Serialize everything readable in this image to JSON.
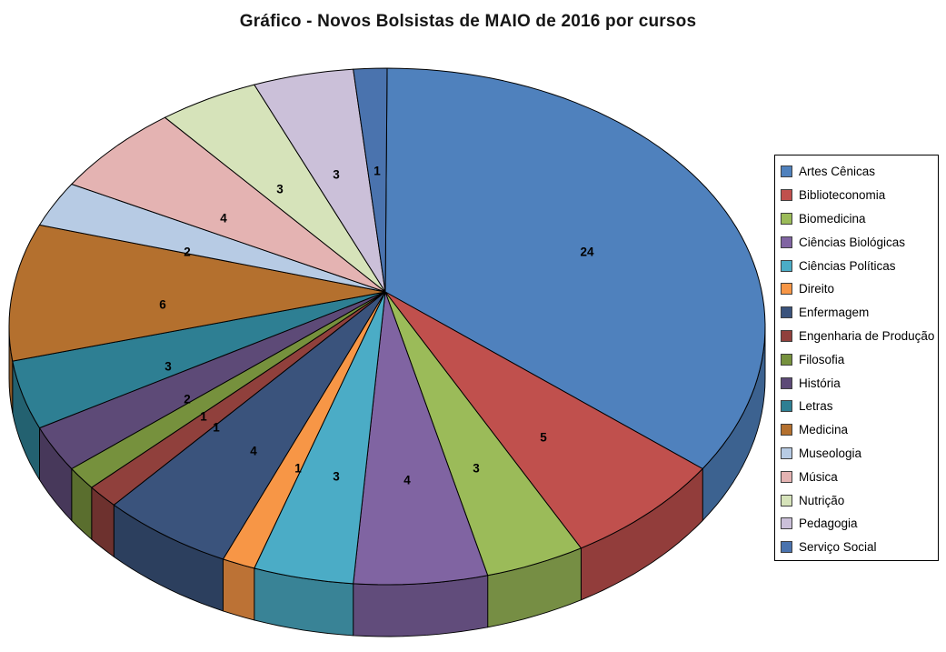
{
  "title": "Gráfico - Novos Bolsistas de MAIO de 2016 por cursos",
  "chart_data": {
    "type": "pie",
    "style": "3d",
    "title": "Gráfico - Novos Bolsistas de MAIO de 2016 por cursos",
    "direction": "clockwise",
    "start_angle_deg": 0,
    "legend_position": "right",
    "data_labels": "values",
    "total": 70,
    "categories": [
      "Artes Cênicas",
      "Biblioteconomia",
      "Biomedicina",
      "Ciências Biológicas",
      "Ciências Políticas",
      "Direito",
      "Enfermagem",
      "Engenharia de Produção",
      "Filosofia",
      "História",
      "Letras",
      "Medicina",
      "Museologia",
      "Música",
      "Nutrição",
      "Pedagogia",
      "Serviço Social"
    ],
    "values": [
      24,
      5,
      3,
      4,
      3,
      1,
      4,
      1,
      1,
      2,
      3,
      6,
      2,
      4,
      3,
      3,
      1
    ],
    "colors": [
      "#4F81BD",
      "#C0504D",
      "#9BBB59",
      "#8064A2",
      "#4BACC6",
      "#F79646",
      "#3A537C",
      "#90403C",
      "#76913D",
      "#5D4A77",
      "#2E7F93",
      "#B4702E",
      "#B7CBE4",
      "#E4B3B2",
      "#D6E3BA",
      "#CBC0D9",
      "#4A73AE"
    ]
  }
}
